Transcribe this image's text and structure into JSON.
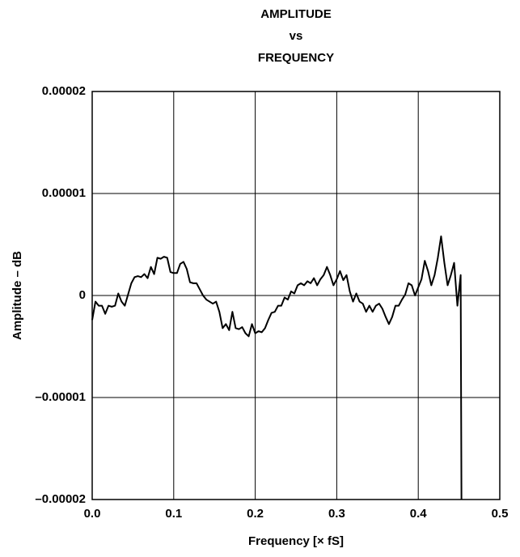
{
  "chart_data": {
    "type": "line",
    "title": [
      "AMPLITUDE",
      "vs",
      "FREQUENCY"
    ],
    "x_label": "Frequency [× fS]",
    "y_label": "Amplitude – dB",
    "x": [
      0,
      0.004,
      0.008,
      0.012,
      0.016,
      0.02,
      0.024,
      0.028,
      0.032,
      0.036,
      0.04,
      0.044,
      0.048,
      0.052,
      0.056,
      0.06,
      0.064,
      0.068,
      0.072,
      0.076,
      0.08,
      0.084,
      0.088,
      0.092,
      0.096,
      0.1,
      0.104,
      0.108,
      0.112,
      0.116,
      0.12,
      0.124,
      0.128,
      0.132,
      0.136,
      0.14,
      0.144,
      0.148,
      0.152,
      0.156,
      0.16,
      0.164,
      0.168,
      0.172,
      0.176,
      0.18,
      0.184,
      0.188,
      0.192,
      0.196,
      0.2,
      0.204,
      0.208,
      0.212,
      0.216,
      0.22,
      0.224,
      0.228,
      0.232,
      0.236,
      0.24,
      0.244,
      0.248,
      0.252,
      0.256,
      0.26,
      0.264,
      0.268,
      0.272,
      0.276,
      0.28,
      0.284,
      0.288,
      0.292,
      0.296,
      0.3,
      0.304,
      0.308,
      0.312,
      0.316,
      0.32,
      0.324,
      0.328,
      0.332,
      0.336,
      0.34,
      0.344,
      0.348,
      0.352,
      0.356,
      0.36,
      0.364,
      0.368,
      0.372,
      0.376,
      0.38,
      0.384,
      0.388,
      0.392,
      0.396,
      0.4,
      0.404,
      0.408,
      0.412,
      0.416,
      0.42,
      0.424,
      0.428,
      0.432,
      0.436,
      0.44,
      0.444,
      0.448,
      0.452,
      0.453
    ],
    "series": [
      {
        "color": "#000000",
        "values": [
          -2.4e-06,
          -6e-07,
          -1e-06,
          -1e-06,
          -1.8e-06,
          -1e-06,
          -1.1e-06,
          -1e-06,
          2e-07,
          -6e-07,
          -1e-06,
          1e-07,
          1.2e-06,
          1.8e-06,
          1.9e-06,
          1.8e-06,
          2.1e-06,
          1.7e-06,
          2.8e-06,
          2.1e-06,
          3.7e-06,
          3.6e-06,
          3.8e-06,
          3.7e-06,
          2.3e-06,
          2.2e-06,
          2.2e-06,
          3.1e-06,
          3.3e-06,
          2.6e-06,
          1.3e-06,
          1.2e-06,
          1.2e-06,
          6e-07,
          0,
          -4e-07,
          -6e-07,
          -8e-07,
          -6e-07,
          -1.6e-06,
          -3.2e-06,
          -2.8e-06,
          -3.4e-06,
          -1.6e-06,
          -3.2e-06,
          -3.3e-06,
          -3.1e-06,
          -3.7e-06,
          -4e-06,
          -2.8e-06,
          -3.7e-06,
          -3.5e-06,
          -3.6e-06,
          -3.2e-06,
          -2.4e-06,
          -1.7e-06,
          -1.6e-06,
          -1e-06,
          -1e-06,
          -2e-07,
          -4e-07,
          4e-07,
          2e-07,
          1e-06,
          1.2e-06,
          1e-06,
          1.4e-06,
          1.2e-06,
          1.7e-06,
          1e-06,
          1.6e-06,
          2e-06,
          2.8e-06,
          2e-06,
          1e-06,
          1.6e-06,
          2.4e-06,
          1.5e-06,
          2e-06,
          4e-07,
          -6e-07,
          2e-07,
          -6e-07,
          -8e-07,
          -1.6e-06,
          -1e-06,
          -1.6e-06,
          -1e-06,
          -8e-07,
          -1.3e-06,
          -2.1e-06,
          -2.8e-06,
          -2.1e-06,
          -1e-06,
          -1e-06,
          -4e-07,
          1e-07,
          1.2e-06,
          1e-06,
          0,
          8e-07,
          1.6e-06,
          3.4e-06,
          2.4e-06,
          1e-06,
          2e-06,
          3.7e-06,
          5.8e-06,
          3.2e-06,
          1e-06,
          2e-06,
          3.2e-06,
          -1e-06,
          2e-06,
          -2e-05
        ]
      }
    ],
    "xlim": [
      0,
      0.5
    ],
    "xticks": [
      {
        "value": 0,
        "label": "0.0"
      },
      0.1,
      0.2,
      0.3,
      0.4,
      0.5
    ],
    "ylim": [
      -2e-05,
      2e-05
    ],
    "yticks": [
      {
        "value": -2e-05,
        "label": "–0.00002"
      },
      {
        "value": -1e-05,
        "label": "–0.00001"
      },
      {
        "value": 0,
        "label": "0"
      },
      {
        "value": 1e-05,
        "label": "0.00001"
      },
      {
        "value": 2e-05,
        "label": "0.00002"
      }
    ],
    "grid": true
  }
}
